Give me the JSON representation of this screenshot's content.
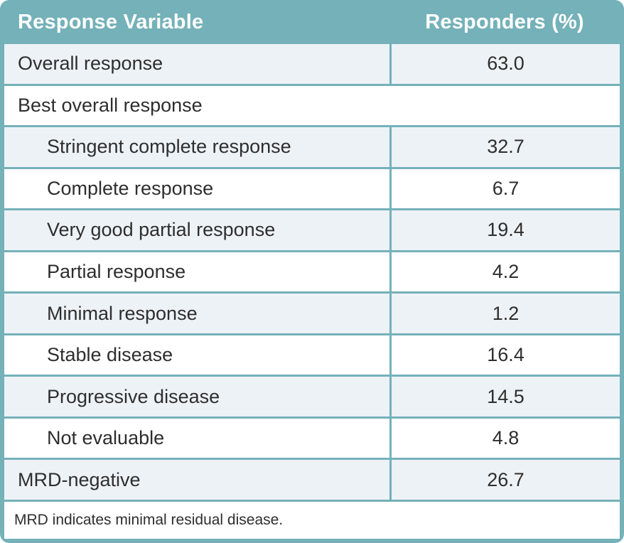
{
  "table": {
    "header": {
      "response_variable": "Response Variable",
      "responders_pct": "Responders (%)"
    },
    "rows": [
      {
        "label": "Overall response",
        "value": "63.0",
        "level": 0
      },
      {
        "label": "Best overall response",
        "value": null,
        "level": 0
      },
      {
        "label": "Stringent complete response",
        "value": "32.7",
        "level": 1
      },
      {
        "label": "Complete response",
        "value": "6.7",
        "level": 1
      },
      {
        "label": "Very good partial response",
        "value": "19.4",
        "level": 1
      },
      {
        "label": "Partial response",
        "value": "4.2",
        "level": 1
      },
      {
        "label": "Minimal response",
        "value": "1.2",
        "level": 1
      },
      {
        "label": "Stable disease",
        "value": "16.4",
        "level": 1
      },
      {
        "label": "Progressive disease",
        "value": "14.5",
        "level": 1
      },
      {
        "label": "Not evaluable",
        "value": "4.8",
        "level": 1
      },
      {
        "label": "MRD-negative",
        "value": "26.7",
        "level": 0
      }
    ],
    "footnote": "MRD indicates minimal residual disease."
  },
  "colors": {
    "header_teal": "#74b1b9",
    "shaded_row": "#edf2f7",
    "plain_row": "#ffffff",
    "text_dark": "#2e2e2e",
    "header_text": "#ffffff"
  }
}
